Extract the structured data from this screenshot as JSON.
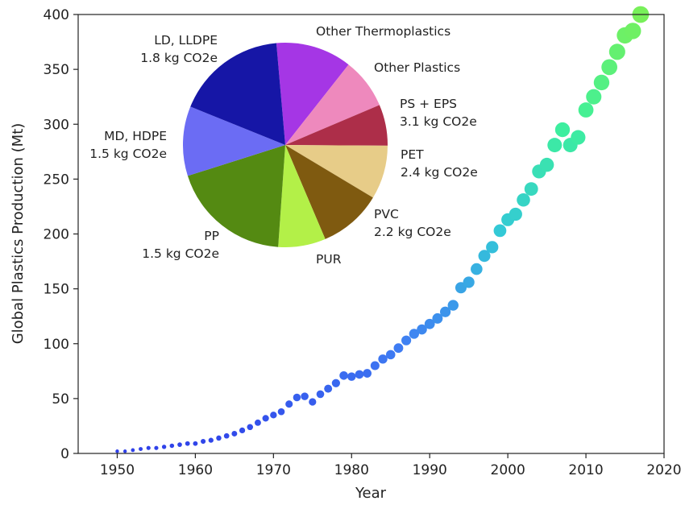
{
  "chart_data": [
    {
      "type": "scatter",
      "xlabel": "Year",
      "ylabel": "Global Plastics Production (Mt)",
      "xlim": [
        1945,
        2020
      ],
      "ylim": [
        0,
        400
      ],
      "xticks": [
        1950,
        1960,
        1970,
        1980,
        1990,
        2000,
        2010,
        2020
      ],
      "yticks": [
        0,
        50,
        100,
        150,
        200,
        250,
        300,
        350,
        400
      ],
      "grid": false,
      "marker_size": "grows with production",
      "color_scale": [
        "#2f3fe8",
        "#3f7ff3",
        "#33c8d8",
        "#3ef09c",
        "#78f05a"
      ],
      "x": [
        1950,
        1951,
        1952,
        1953,
        1954,
        1955,
        1956,
        1957,
        1958,
        1959,
        1960,
        1961,
        1962,
        1963,
        1964,
        1965,
        1966,
        1967,
        1968,
        1969,
        1970,
        1971,
        1972,
        1973,
        1974,
        1975,
        1976,
        1977,
        1978,
        1979,
        1980,
        1981,
        1982,
        1983,
        1984,
        1985,
        1986,
        1987,
        1988,
        1989,
        1990,
        1991,
        1992,
        1993,
        1994,
        1995,
        1996,
        1997,
        1998,
        1999,
        2000,
        2001,
        2002,
        2003,
        2004,
        2005,
        2006,
        2007,
        2008,
        2009,
        2010,
        2011,
        2012,
        2013,
        2014,
        2015,
        2016,
        2017
      ],
      "y": [
        2,
        2,
        3,
        4,
        5,
        5,
        6,
        7,
        8,
        9,
        9,
        11,
        12,
        14,
        16,
        18,
        21,
        24,
        28,
        32,
        35,
        38,
        45,
        51,
        52,
        47,
        54,
        59,
        64,
        71,
        70,
        72,
        73,
        80,
        86,
        90,
        96,
        103,
        109,
        113,
        118,
        123,
        129,
        135,
        151,
        156,
        168,
        180,
        188,
        203,
        213,
        218,
        231,
        241,
        257,
        263,
        281,
        295,
        281,
        288,
        313,
        325,
        338,
        352,
        366,
        381,
        385,
        400
      ]
    },
    {
      "type": "pie",
      "slices": [
        {
          "name": "Other Thermoplastics",
          "share": 12,
          "color": "#a536e5",
          "label_lines": [
            "Other Thermoplastics"
          ]
        },
        {
          "name": "Other Plastics",
          "share": 8,
          "color": "#ee89bd",
          "label_lines": [
            "Other Plastics"
          ]
        },
        {
          "name": "PS + EPS",
          "share": 6.5,
          "color": "#ad2e49",
          "label_lines": [
            "PS + EPS",
            "3.1 kg CO2e"
          ]
        },
        {
          "name": "PET",
          "share": 8.5,
          "color": "#e7cc88",
          "label_lines": [
            "PET",
            "2.4 kg CO2e"
          ]
        },
        {
          "name": "PVC",
          "share": 10,
          "color": "#7f5a10",
          "label_lines": [
            "PVC",
            "2.2 kg CO2e"
          ]
        },
        {
          "name": "PUR",
          "share": 7.5,
          "color": "#b3f048",
          "label_lines": [
            "PUR"
          ]
        },
        {
          "name": "PP",
          "share": 19,
          "color": "#548a12",
          "label_lines": [
            "PP",
            "1.5 kg CO2e"
          ]
        },
        {
          "name": "MD, HDPE",
          "share": 11,
          "color": "#6b6cf4",
          "label_lines": [
            "MD, HDPE",
            "1.5 kg CO2e"
          ]
        },
        {
          "name": "LD, LLDPE",
          "share": 17.5,
          "color": "#1616a6",
          "label_lines": [
            "LD, LLDPE",
            "1.8 kg CO2e"
          ]
        }
      ]
    }
  ]
}
